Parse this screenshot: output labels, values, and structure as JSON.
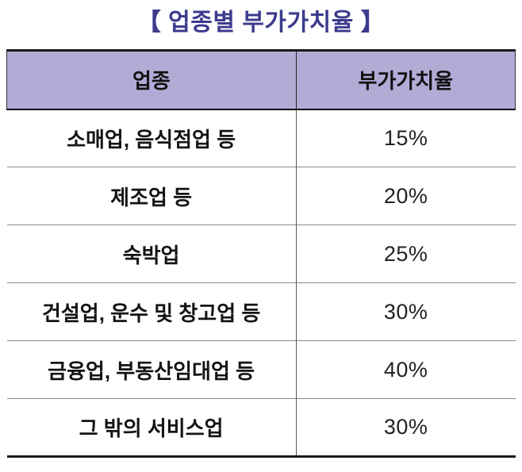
{
  "title": "【 업종별 부가가치율 】",
  "table": {
    "headers": [
      "업종",
      "부가가치율"
    ],
    "rows": [
      {
        "industry": "소매업, 음식점업 등",
        "rate": "15%"
      },
      {
        "industry": "제조업 등",
        "rate": "20%"
      },
      {
        "industry": "숙박업",
        "rate": "25%"
      },
      {
        "industry": "건설업, 운수 및 창고업 등",
        "rate": "30%"
      },
      {
        "industry": "금융업, 부동산임대업 등",
        "rate": "40%"
      },
      {
        "industry": "그 밖의 서비스업",
        "rate": "30%"
      }
    ]
  },
  "colors": {
    "title_text": "#3d3b8e",
    "header_background": "#b0acd6",
    "body_text": "#1a1a1a",
    "border_dark": "#1a1a1a",
    "row_divider": "#888888",
    "column_divider": "#555555"
  },
  "chart_data": {
    "type": "table",
    "title": "업종별 부가가치율",
    "columns": [
      "업종",
      "부가가치율"
    ],
    "rows": [
      [
        "소매업, 음식점업 등",
        "15%"
      ],
      [
        "제조업 등",
        "20%"
      ],
      [
        "숙박업",
        "25%"
      ],
      [
        "건설업, 운수 및 창고업 등",
        "30%"
      ],
      [
        "금융업, 부동산임대업 등",
        "40%"
      ],
      [
        "그 밖의 서비스업",
        "30%"
      ]
    ],
    "rates_percent": [
      15,
      20,
      25,
      30,
      40,
      30
    ]
  }
}
